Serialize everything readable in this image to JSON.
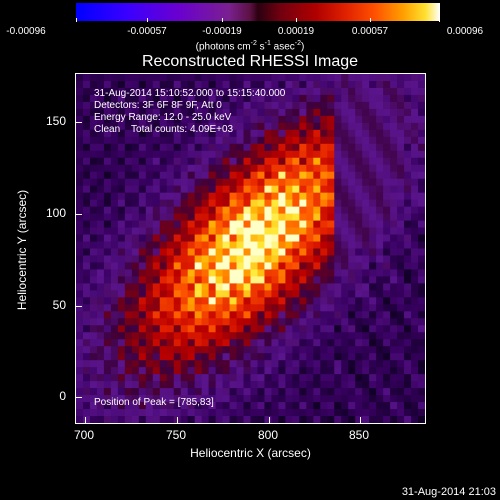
{
  "colorbar": {
    "ticks": [
      "-0.00096",
      "-0.00057",
      "-0.00019",
      "0.00019",
      "0.00057",
      "0.00096"
    ],
    "unit_main": "(photons cm",
    "unit_sup1": "-2",
    "unit_mid1": " s",
    "unit_sup2": "-1",
    "unit_mid2": " asec",
    "unit_sup3": "-2",
    "unit_end": ")"
  },
  "title": "Reconstructed RHESSI Image",
  "info": {
    "line1": "31-Aug-2014 15:10:52.000 to 15:15:40.000",
    "line2": "Detectors: 3F 6F 8F 9F, Att 0",
    "line3": "Energy Range: 12.0 - 25.0 keV",
    "line4": "Clean    Total counts: 4.09E+03"
  },
  "peak_text": "Position of Peak = [785,83]",
  "axes": {
    "xlabel": "Heliocentric X (arcsec)",
    "ylabel": "Heliocentric Y (arcsec)",
    "xticks": [
      "700",
      "750",
      "800",
      "850"
    ],
    "yticks": [
      "150",
      "100",
      "50",
      "0"
    ]
  },
  "timestamp": "31-Aug-2014 21:03"
}
